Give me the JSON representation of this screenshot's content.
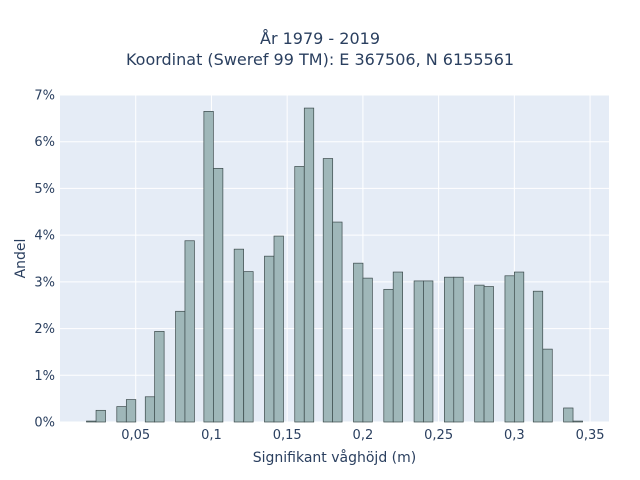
{
  "chart_data": {
    "type": "bar",
    "title_lines": [
      "År 1979 - 2019",
      "Koordinat (Sweref 99 TM): E 367506, N 6155561"
    ],
    "xlabel": "Signifikant våghöjd (m)",
    "ylabel": "Andel",
    "xlim": [
      0.0,
      0.3625
    ],
    "ylim": [
      0,
      7
    ],
    "x_ticks": [
      {
        "value": 0.05,
        "label": "0,05"
      },
      {
        "value": 0.1,
        "label": "0,1"
      },
      {
        "value": 0.15,
        "label": "0,15"
      },
      {
        "value": 0.2,
        "label": "0,2"
      },
      {
        "value": 0.25,
        "label": "0,25"
      },
      {
        "value": 0.3,
        "label": "0,3"
      },
      {
        "value": 0.35,
        "label": "0,35"
      }
    ],
    "y_ticks": [
      {
        "value": 0,
        "label": "0%"
      },
      {
        "value": 1,
        "label": "1%"
      },
      {
        "value": 2,
        "label": "2%"
      },
      {
        "value": 3,
        "label": "3%"
      },
      {
        "value": 4,
        "label": "4%"
      },
      {
        "value": 5,
        "label": "5%"
      },
      {
        "value": 6,
        "label": "6%"
      },
      {
        "value": 7,
        "label": "7%"
      }
    ],
    "bin_width": 0.00625,
    "bars": [
      {
        "x": 0.0175,
        "value": 0.02
      },
      {
        "x": 0.0238,
        "value": 0.25
      },
      {
        "x": 0.0375,
        "value": 0.33
      },
      {
        "x": 0.0438,
        "value": 0.48
      },
      {
        "x": 0.0563,
        "value": 0.54
      },
      {
        "x": 0.0625,
        "value": 1.94
      },
      {
        "x": 0.0763,
        "value": 2.37
      },
      {
        "x": 0.0825,
        "value": 3.88
      },
      {
        "x": 0.095,
        "value": 6.65
      },
      {
        "x": 0.1013,
        "value": 5.43
      },
      {
        "x": 0.115,
        "value": 3.7
      },
      {
        "x": 0.1213,
        "value": 3.22
      },
      {
        "x": 0.135,
        "value": 3.55
      },
      {
        "x": 0.1413,
        "value": 3.98
      },
      {
        "x": 0.155,
        "value": 5.47
      },
      {
        "x": 0.1613,
        "value": 6.72
      },
      {
        "x": 0.1738,
        "value": 5.64
      },
      {
        "x": 0.18,
        "value": 4.28
      },
      {
        "x": 0.1938,
        "value": 3.4
      },
      {
        "x": 0.2,
        "value": 3.08
      },
      {
        "x": 0.2138,
        "value": 2.84
      },
      {
        "x": 0.22,
        "value": 3.21
      },
      {
        "x": 0.2338,
        "value": 3.02
      },
      {
        "x": 0.24,
        "value": 3.02
      },
      {
        "x": 0.2538,
        "value": 3.1
      },
      {
        "x": 0.26,
        "value": 3.1
      },
      {
        "x": 0.2738,
        "value": 2.93
      },
      {
        "x": 0.28,
        "value": 2.9
      },
      {
        "x": 0.2938,
        "value": 3.13
      },
      {
        "x": 0.3,
        "value": 3.21
      },
      {
        "x": 0.3125,
        "value": 2.8
      },
      {
        "x": 0.3188,
        "value": 1.56
      },
      {
        "x": 0.3325,
        "value": 0.3
      },
      {
        "x": 0.3388,
        "value": 0.02
      }
    ],
    "bar_color": "#9fb7b9",
    "bar_edge_color": "#3b4a4b",
    "plot_bg": "#e5ecf6",
    "grid": true
  }
}
